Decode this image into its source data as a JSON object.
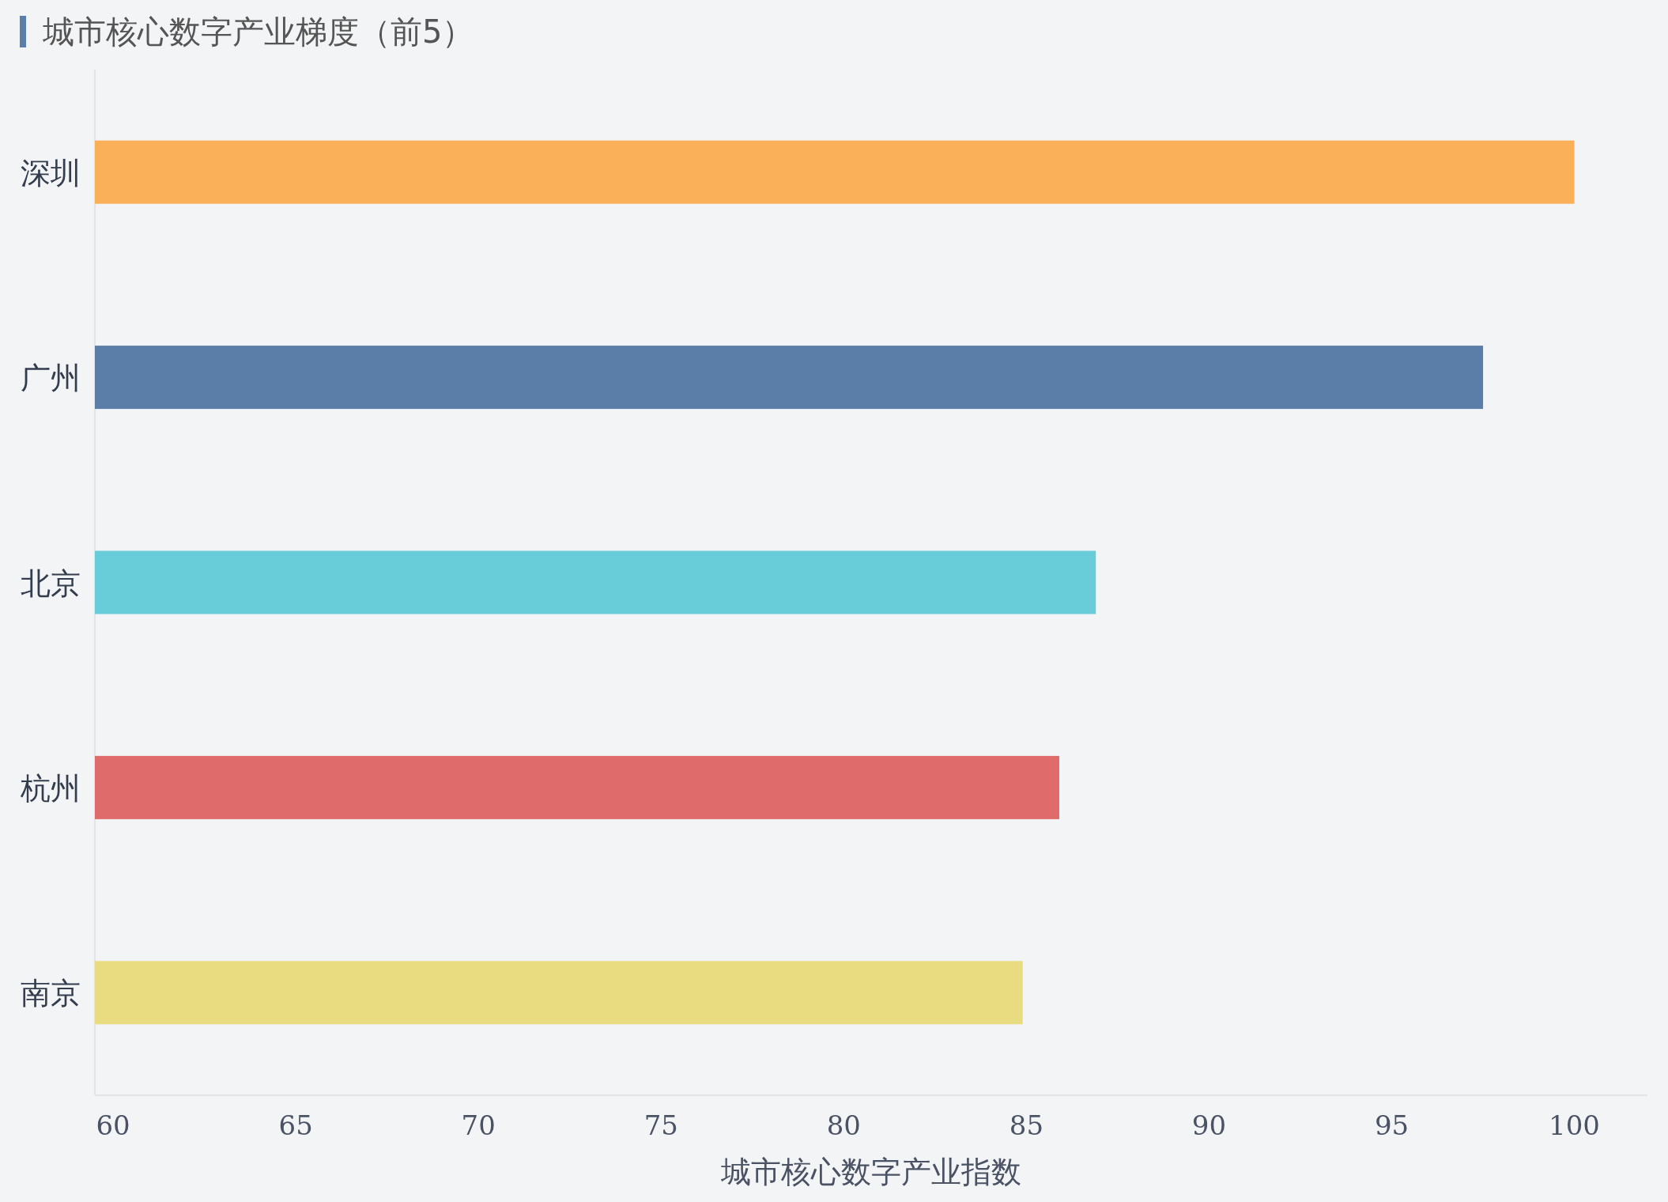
{
  "chart_data": {
    "type": "bar",
    "orientation": "horizontal",
    "title": "城市核心数字产业梯度（前5）",
    "xlabel": "城市核心数字产业指数",
    "categories": [
      "深圳",
      "广州",
      "北京",
      "杭州",
      "南京"
    ],
    "values": [
      100,
      97.5,
      86.9,
      85.9,
      84.9
    ],
    "colors": [
      "#f9b058",
      "#5b7ea8",
      "#68ccd9",
      "#e06b6b",
      "#e9dc80"
    ],
    "xlim": [
      59.5,
      102
    ],
    "xticks": [
      60,
      65,
      70,
      75,
      80,
      85,
      90,
      95,
      100
    ],
    "grid": false
  }
}
